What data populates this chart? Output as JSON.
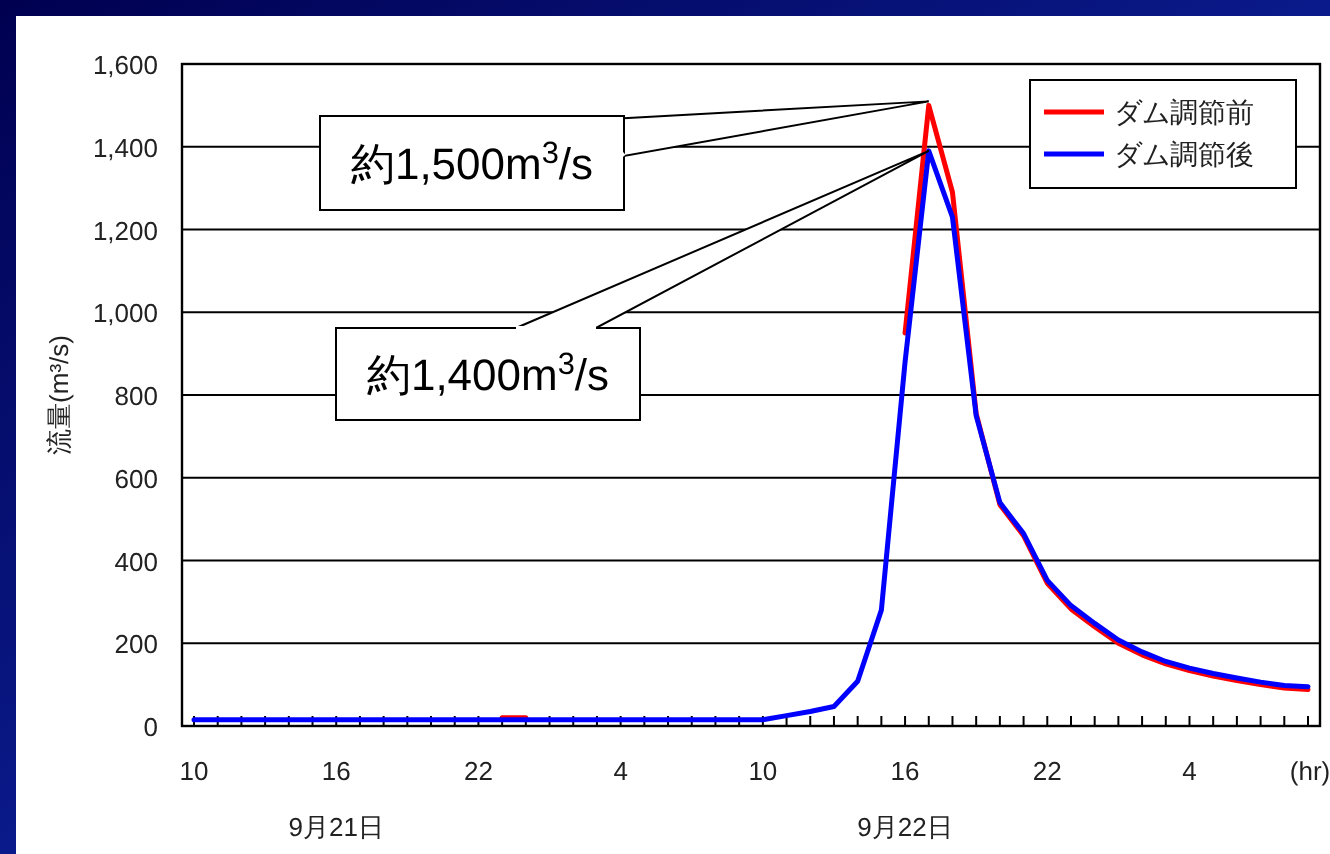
{
  "chart_data": {
    "type": "line",
    "ylabel": "流量(m³/s)",
    "xlabel": "(hr)",
    "categories": [
      "10",
      null,
      null,
      null,
      null,
      null,
      "16",
      null,
      null,
      null,
      null,
      null,
      "22",
      null,
      null,
      null,
      null,
      null,
      "4",
      null,
      null,
      null,
      null,
      null,
      "10",
      null,
      null,
      null,
      null,
      null,
      "16",
      null,
      null,
      null,
      null,
      null,
      "22",
      null,
      null,
      null,
      null,
      null,
      "4",
      null,
      null,
      null,
      null,
      null
    ],
    "series": [
      {
        "name": "ダム調節前",
        "color": "#ff0000",
        "values": [
          null,
          null,
          null,
          null,
          null,
          null,
          null,
          null,
          null,
          null,
          null,
          null,
          null,
          20,
          20,
          null,
          null,
          null,
          null,
          null,
          null,
          null,
          null,
          null,
          null,
          null,
          null,
          null,
          null,
          null,
          950,
          1500,
          1290,
          755,
          535,
          460,
          345,
          283,
          240,
          200,
          172,
          150,
          134,
          121,
          110,
          100,
          92,
          88
        ]
      },
      {
        "name": "ダム調節後",
        "color": "#0000ff",
        "values": [
          15,
          15,
          15,
          15,
          15,
          15,
          15,
          15,
          15,
          15,
          15,
          15,
          15,
          15,
          15,
          15,
          15,
          15,
          15,
          15,
          15,
          15,
          15,
          15,
          15,
          25,
          35,
          47,
          108,
          280,
          880,
          1390,
          1230,
          750,
          540,
          465,
          352,
          291,
          248,
          208,
          179,
          156,
          140,
          127,
          116,
          106,
          98,
          95
        ]
      }
    ],
    "ylim": [
      0,
      1600
    ],
    "yticks": [
      0,
      200,
      400,
      600,
      800,
      {
        "value": 1000,
        "label": "1,000"
      },
      {
        "value": 1200,
        "label": "1,200"
      },
      {
        "value": 1400,
        "label": "1,400"
      },
      {
        "value": 1600,
        "label": "1,600"
      }
    ],
    "grid": "y",
    "legend": "top right",
    "annotations": [
      "約1,500m$^{3}$/s",
      "約1,400m$^{3}$/s",
      "9月21日",
      "9月22日"
    ]
  }
}
